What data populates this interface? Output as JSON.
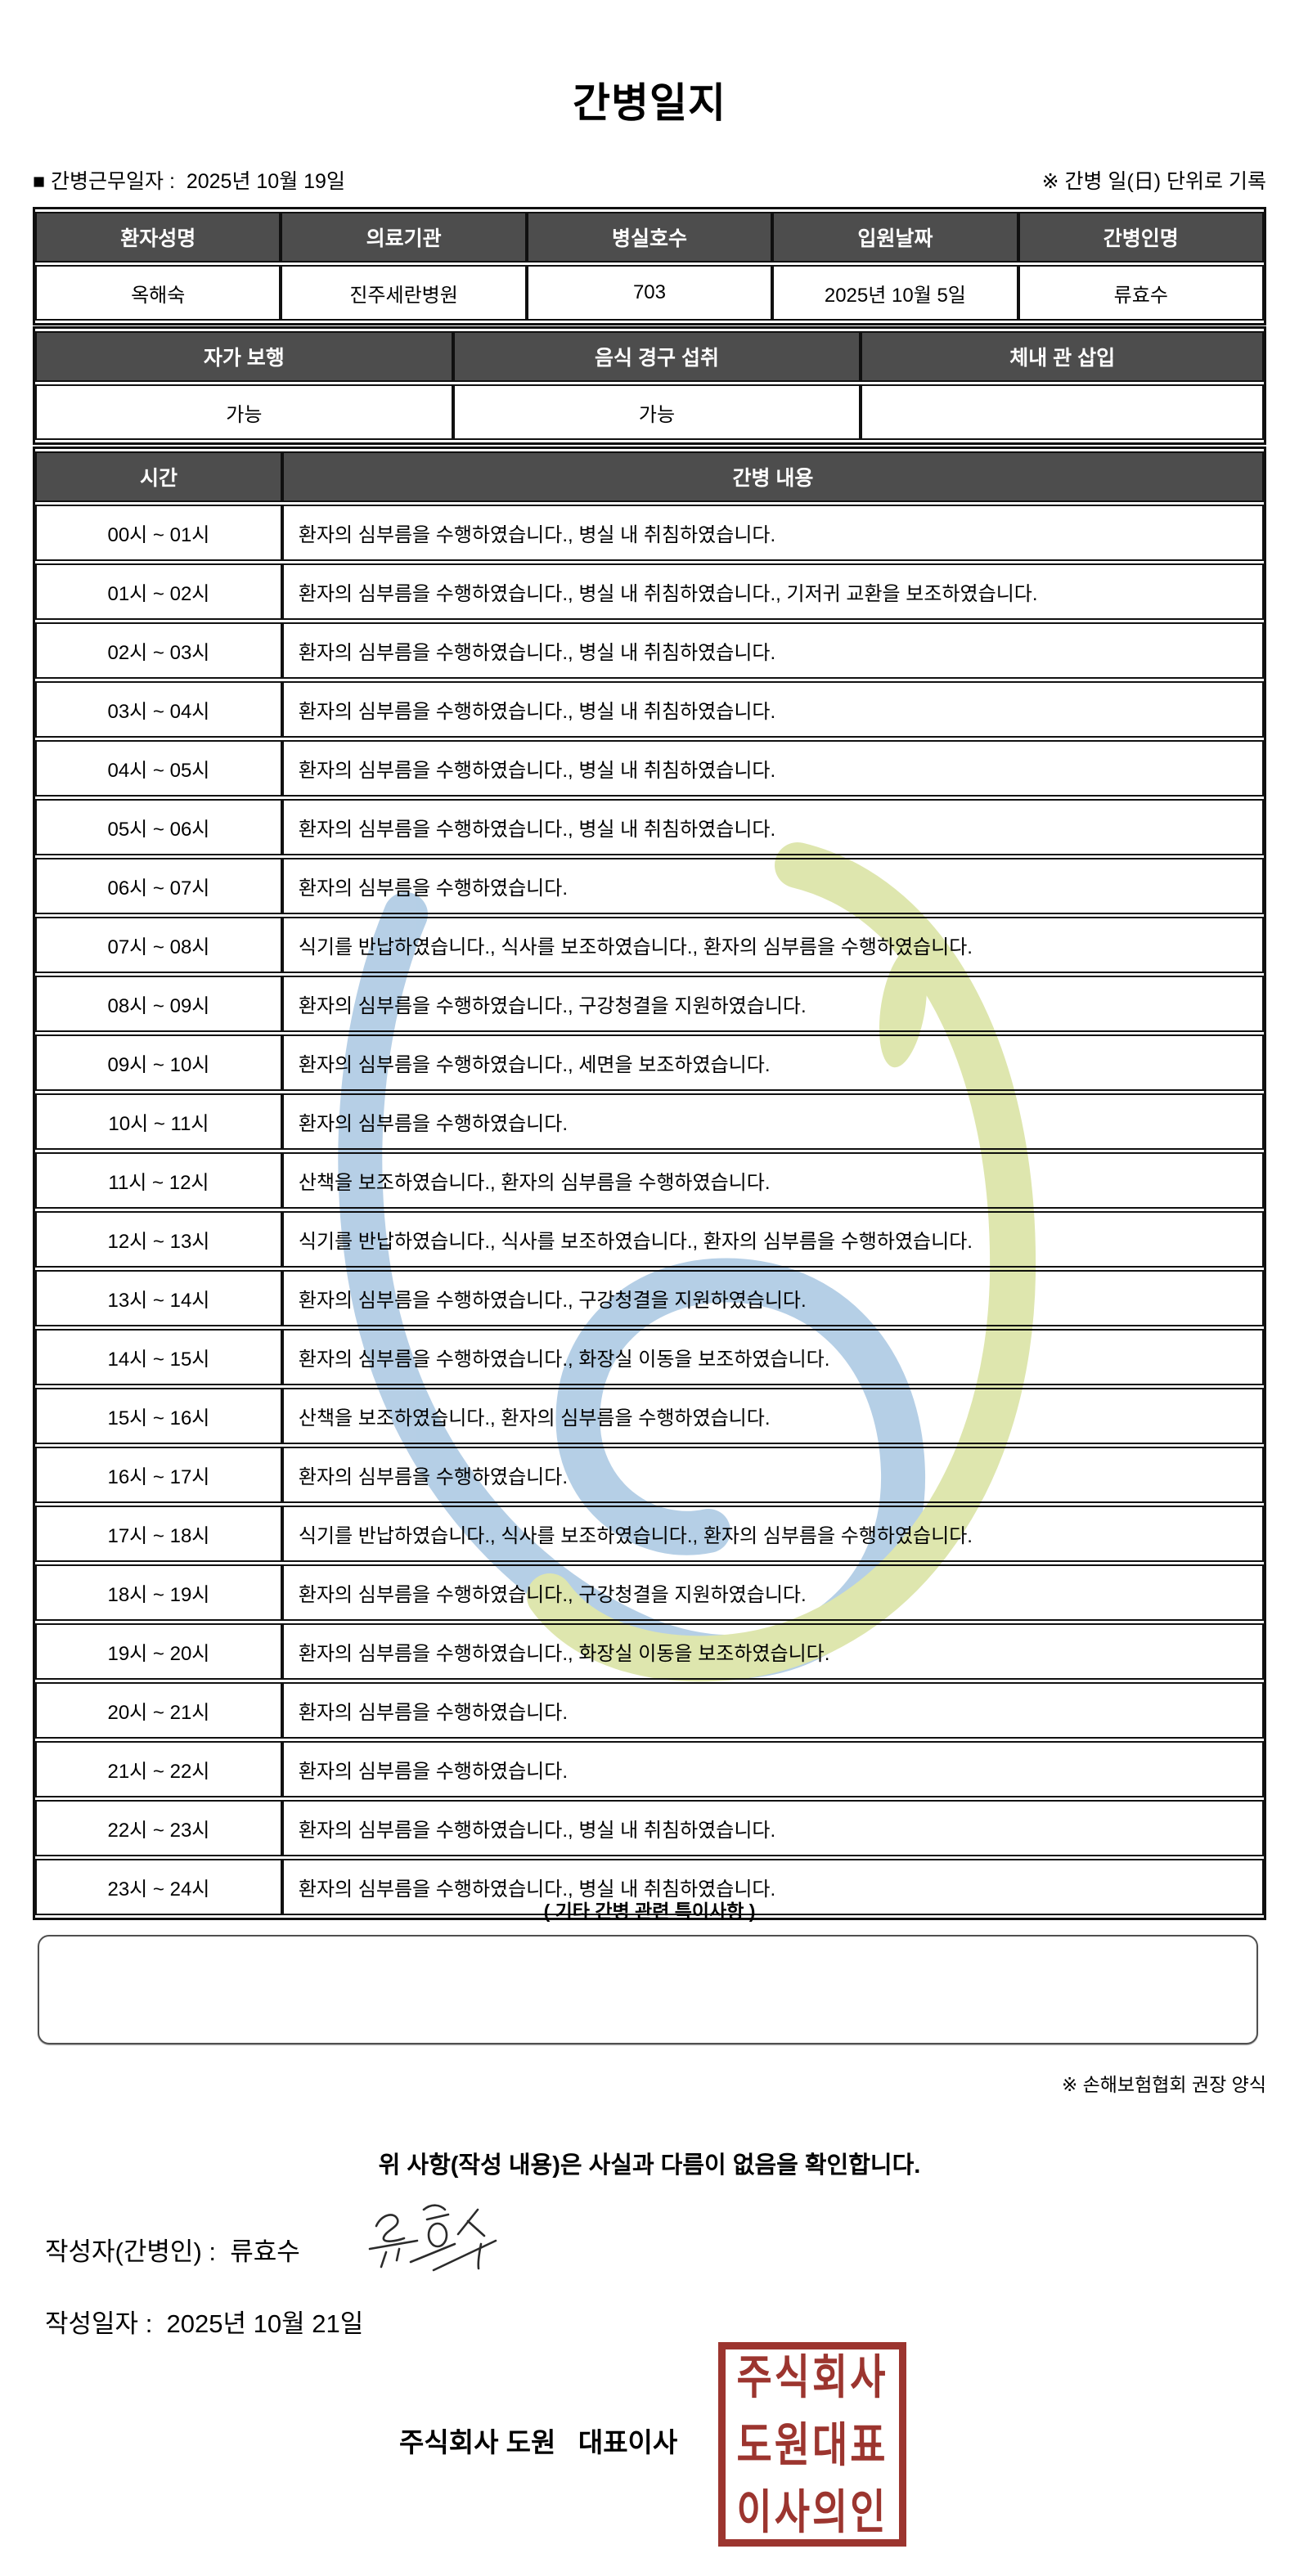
{
  "title": "간병일지",
  "meta": {
    "duty_date_line": "■ 간병근무일자 :  2025년 10월 19일",
    "unit_note": "※ 간병 일(日) 단위로 기록"
  },
  "patient_table": {
    "headers": [
      "환자성명",
      "의료기관",
      "병실호수",
      "입원날짜",
      "간병인명"
    ],
    "values": [
      "옥해숙",
      "진주세란병원",
      "703",
      "2025년 10월 5일",
      "류효수"
    ]
  },
  "status_table": {
    "headers": [
      "자가 보행",
      "음식 경구 섭취",
      "체내 관 삽입"
    ],
    "values": [
      "가능",
      "가능",
      ""
    ]
  },
  "care_log": {
    "headers": [
      "시간",
      "간병 내용"
    ],
    "rows": [
      {
        "time": "00시 ~ 01시",
        "content": "환자의 심부름을 수행하였습니다., 병실 내 취침하였습니다."
      },
      {
        "time": "01시 ~ 02시",
        "content": "환자의 심부름을 수행하였습니다., 병실 내 취침하였습니다., 기저귀 교환을 보조하였습니다."
      },
      {
        "time": "02시 ~ 03시",
        "content": "환자의 심부름을 수행하였습니다., 병실 내 취침하였습니다."
      },
      {
        "time": "03시 ~ 04시",
        "content": "환자의 심부름을 수행하였습니다., 병실 내 취침하였습니다."
      },
      {
        "time": "04시 ~ 05시",
        "content": "환자의 심부름을 수행하였습니다., 병실 내 취침하였습니다."
      },
      {
        "time": "05시 ~ 06시",
        "content": "환자의 심부름을 수행하였습니다., 병실 내 취침하였습니다."
      },
      {
        "time": "06시 ~ 07시",
        "content": "환자의 심부름을 수행하였습니다."
      },
      {
        "time": "07시 ~ 08시",
        "content": "식기를 반납하였습니다., 식사를 보조하였습니다., 환자의 심부름을 수행하였습니다."
      },
      {
        "time": "08시 ~ 09시",
        "content": "환자의 심부름을 수행하였습니다., 구강청결을 지원하였습니다."
      },
      {
        "time": "09시 ~ 10시",
        "content": "환자의 심부름을 수행하였습니다., 세면을 보조하였습니다."
      },
      {
        "time": "10시 ~ 11시",
        "content": "환자의 심부름을 수행하였습니다."
      },
      {
        "time": "11시 ~ 12시",
        "content": "산책을 보조하였습니다., 환자의 심부름을 수행하였습니다."
      },
      {
        "time": "12시 ~ 13시",
        "content": "식기를 반납하였습니다., 식사를 보조하였습니다., 환자의 심부름을 수행하였습니다."
      },
      {
        "time": "13시 ~ 14시",
        "content": "환자의 심부름을 수행하였습니다., 구강청결을 지원하였습니다."
      },
      {
        "time": "14시 ~ 15시",
        "content": "환자의 심부름을 수행하였습니다., 화장실 이동을 보조하였습니다."
      },
      {
        "time": "15시 ~ 16시",
        "content": "산책을 보조하였습니다., 환자의 심부름을 수행하였습니다."
      },
      {
        "time": "16시 ~ 17시",
        "content": "환자의 심부름을 수행하였습니다."
      },
      {
        "time": "17시 ~ 18시",
        "content": "식기를 반납하였습니다., 식사를 보조하였습니다., 환자의 심부름을 수행하였습니다."
      },
      {
        "time": "18시 ~ 19시",
        "content": "환자의 심부름을 수행하였습니다., 구강청결을 지원하였습니다."
      },
      {
        "time": "19시 ~ 20시",
        "content": "환자의 심부름을 수행하였습니다., 화장실 이동을 보조하였습니다."
      },
      {
        "time": "20시 ~ 21시",
        "content": "환자의 심부름을 수행하였습니다."
      },
      {
        "time": "21시 ~ 22시",
        "content": "환자의 심부름을 수행하였습니다."
      },
      {
        "time": "22시 ~ 23시",
        "content": "환자의 심부름을 수행하였습니다., 병실 내 취침하였습니다."
      },
      {
        "time": "23시 ~ 24시",
        "content": "환자의 심부름을 수행하였습니다., 병실 내 취침하였습니다."
      }
    ]
  },
  "notes": {
    "heading": "( 기타 간병 관련 특이사항 )",
    "value": ""
  },
  "footer": {
    "form_note": "※ 손해보험협회 권장 양식",
    "confirmation": "위 사항(작성 내용)은 사실과 다름이 없음을 확인합니다.",
    "writer_line": "작성자(간병인) :  류효수",
    "signature_name": "류효수",
    "written_date_line": "작성일자 :  2025년 10월 21일",
    "company_line": "주식회사 도원   대표이사"
  },
  "seal": {
    "lines": [
      "주식회사",
      "도원대표",
      "이사의인"
    ]
  },
  "colors": {
    "header_cell_bg": "#4d4d4d",
    "header_cell_text": "#ffffff",
    "table_border": "#101010",
    "watermark_blue": "#a9c7e2",
    "watermark_green": "#d9e2a0",
    "seal_red": "#9c352f",
    "signature_ink": "#2b2b2b"
  }
}
